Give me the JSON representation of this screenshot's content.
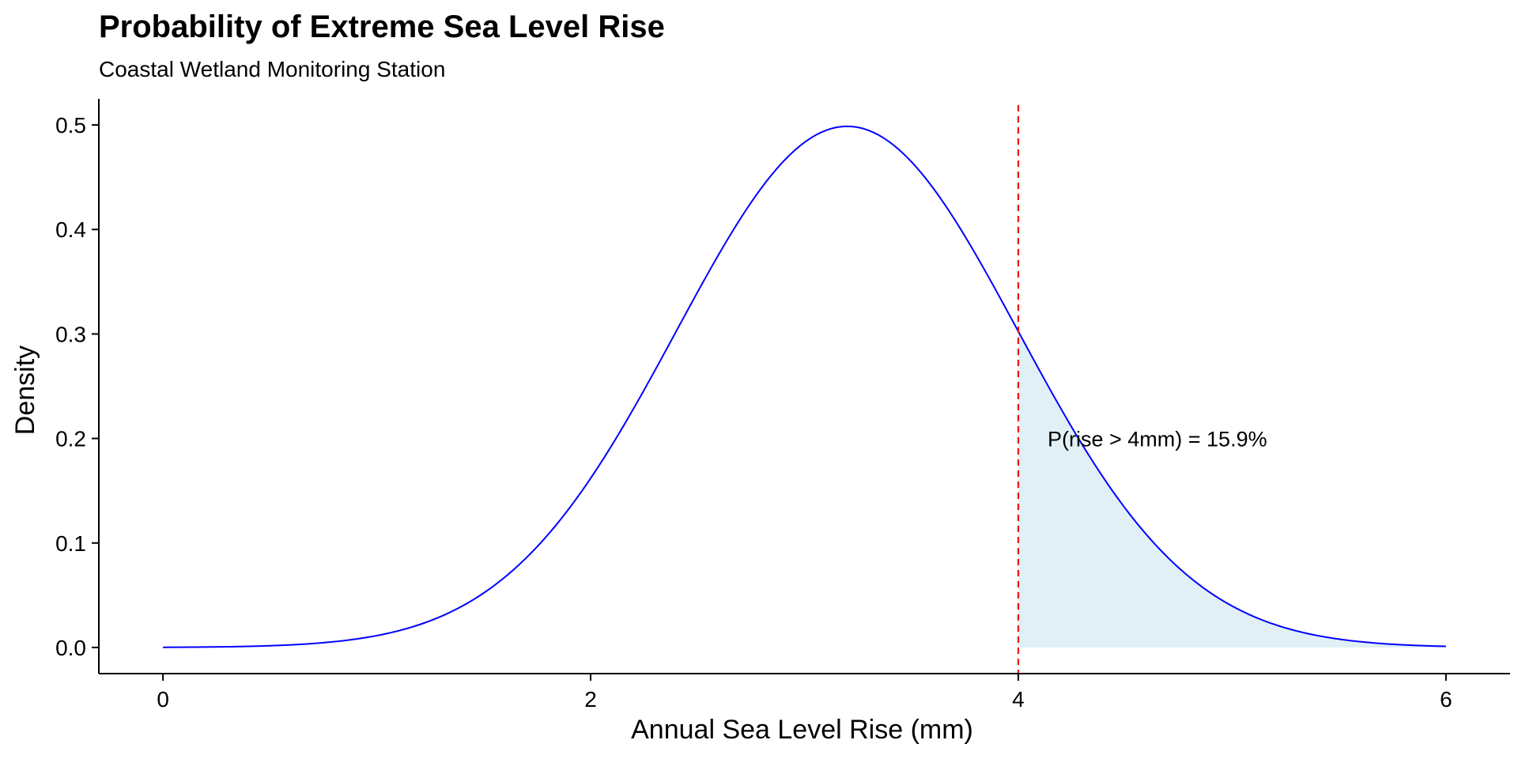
{
  "chart_data": {
    "type": "area",
    "title": "Probability of Extreme Sea Level Rise",
    "subtitle": "Coastal Wetland Monitoring Station",
    "xlabel": "Annual Sea Level Rise (mm)",
    "ylabel": "Density",
    "xlim": [
      -0.3,
      6.3
    ],
    "ylim": [
      -0.025,
      0.525
    ],
    "x_ticks": [
      0,
      2,
      4,
      6
    ],
    "x_tick_labels": [
      "0",
      "2",
      "4",
      "6"
    ],
    "y_ticks": [
      0.0,
      0.1,
      0.2,
      0.3,
      0.4,
      0.5
    ],
    "y_tick_labels": [
      "0.0",
      "0.1",
      "0.2",
      "0.3",
      "0.4",
      "0.5"
    ],
    "grid": false,
    "series": [
      {
        "distribution": "normal",
        "mean": 3.2,
        "sd": 0.8,
        "x_range": [
          0,
          6
        ],
        "color": "#0000ff"
      }
    ],
    "shaded_region": {
      "x_from": 4,
      "x_to": 6,
      "color": "#e0f0f6"
    },
    "threshold_line": {
      "x": 4,
      "color": "#ff0000",
      "style": "dashed"
    },
    "annotations": [
      {
        "text": "P(rise > 4mm) = 15.9%",
        "x": 4.1,
        "y": 0.2
      }
    ]
  }
}
